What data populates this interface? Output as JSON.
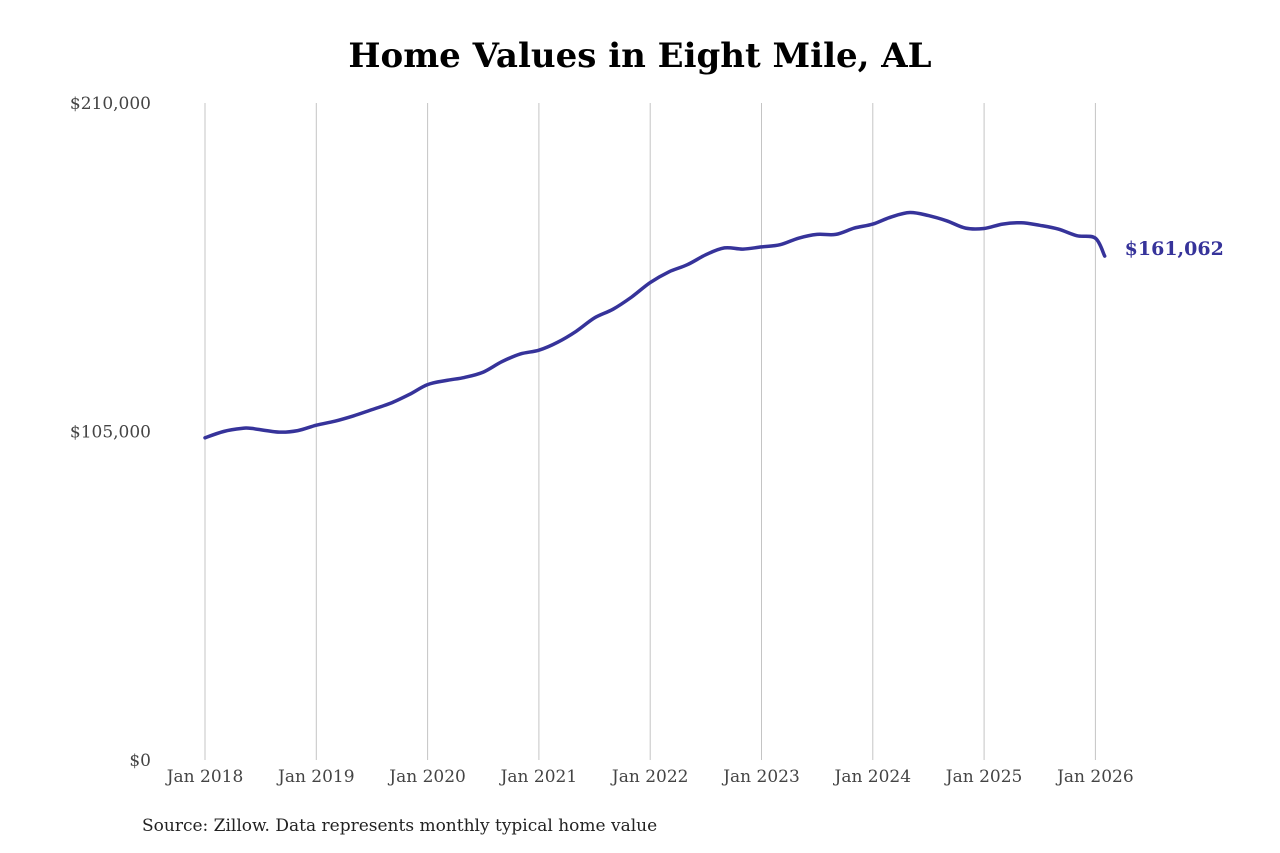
{
  "chart_data": {
    "type": "line",
    "title": "Home Values in Eight Mile, AL",
    "xlabel": "",
    "ylabel": "",
    "ylim": [
      0,
      210000
    ],
    "xlim": [
      "2018-01",
      "2026-03"
    ],
    "yticks": [
      0,
      105000,
      210000
    ],
    "ytick_labels": [
      "$0",
      "$105,000",
      "$210,000"
    ],
    "xticks": [
      "2018-01",
      "2019-01",
      "2020-01",
      "2021-01",
      "2022-01",
      "2023-01",
      "2024-01",
      "2025-01",
      "2026-01"
    ],
    "xtick_labels": [
      "Jan 2018",
      "Jan 2019",
      "Jan 2020",
      "Jan 2021",
      "Jan 2022",
      "Jan 2023",
      "Jan 2024",
      "Jan 2025",
      "Jan 2026"
    ],
    "grid": {
      "vertical": true,
      "horizontal": false
    },
    "line_color": "#36339a",
    "series": [
      {
        "x": [
          "2018-01",
          "2018-03",
          "2018-05",
          "2018-06",
          "2018-09",
          "2018-11",
          "2019-01",
          "2019-03",
          "2019-05",
          "2019-07",
          "2019-09",
          "2019-11",
          "2020-01",
          "2020-03",
          "2020-05",
          "2020-07",
          "2020-09",
          "2020-11",
          "2021-01",
          "2021-03",
          "2021-05",
          "2021-07",
          "2021-09",
          "2021-11",
          "2022-01",
          "2022-03",
          "2022-05",
          "2022-07",
          "2022-09",
          "2022-11",
          "2023-01",
          "2023-03",
          "2023-05",
          "2023-07",
          "2023-09",
          "2023-11",
          "2024-01",
          "2024-03",
          "2024-05",
          "2024-07",
          "2024-09",
          "2024-11",
          "2025-01",
          "2025-03",
          "2025-05",
          "2025-07",
          "2025-09",
          "2025-11",
          "2026-01",
          "2026-02"
        ],
        "values": [
          103000,
          105000,
          106000,
          106000,
          104800,
          105300,
          107000,
          108300,
          110000,
          112000,
          114000,
          116800,
          120000,
          121300,
          122300,
          124000,
          127300,
          129800,
          131000,
          133500,
          137000,
          141300,
          144100,
          148000,
          152600,
          156000,
          158300,
          161500,
          163700,
          163300,
          164000,
          164700,
          166800,
          168000,
          168000,
          170000,
          171300,
          173600,
          175000,
          174000,
          172300,
          170000,
          169900,
          171300,
          171700,
          170900,
          169700,
          167600,
          166800,
          161062
        ]
      }
    ],
    "end_label": "$161,062",
    "source_note": "Source: Zillow. Data represents monthly typical home value"
  }
}
